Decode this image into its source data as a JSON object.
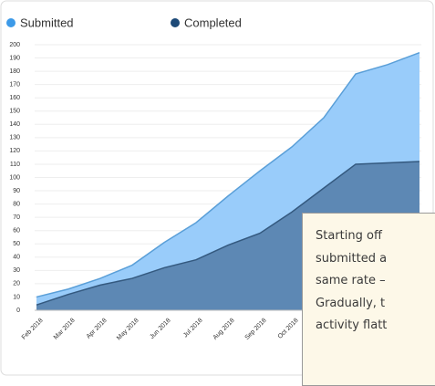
{
  "chart_data": {
    "type": "area",
    "categories": [
      "Feb 2018",
      "Mar 2018",
      "Apr 2018",
      "May 2018",
      "Jun 2018",
      "Jul 2018",
      "Aug 2018",
      "Sep 2018",
      "Oct 2018",
      null,
      null,
      null,
      null
    ],
    "series": [
      {
        "name": "Submitted",
        "color": "#99ccfa",
        "line_color": "#5a9fd8",
        "legend_color": "#3d9ae8",
        "values": [
          10,
          16,
          24,
          34,
          51,
          66,
          86,
          105,
          123,
          145,
          178,
          185,
          194
        ]
      },
      {
        "name": "Completed",
        "color": "#5d88b4",
        "line_color": "#34597f",
        "legend_color": "#1d4a78",
        "values": [
          4,
          12,
          19,
          24,
          32,
          38,
          49,
          58,
          74,
          92,
          110,
          111,
          112
        ]
      }
    ],
    "ylim": [
      0,
      200
    ],
    "yticks": [
      0,
      10,
      20,
      30,
      40,
      50,
      60,
      70,
      80,
      90,
      100,
      110,
      120,
      130,
      140,
      150,
      160,
      170,
      180,
      190,
      200
    ],
    "grid": true,
    "annotation_lines": [
      "Starting off",
      "submitted a",
      "same rate –",
      "Gradually, t",
      "activity flatt"
    ]
  }
}
